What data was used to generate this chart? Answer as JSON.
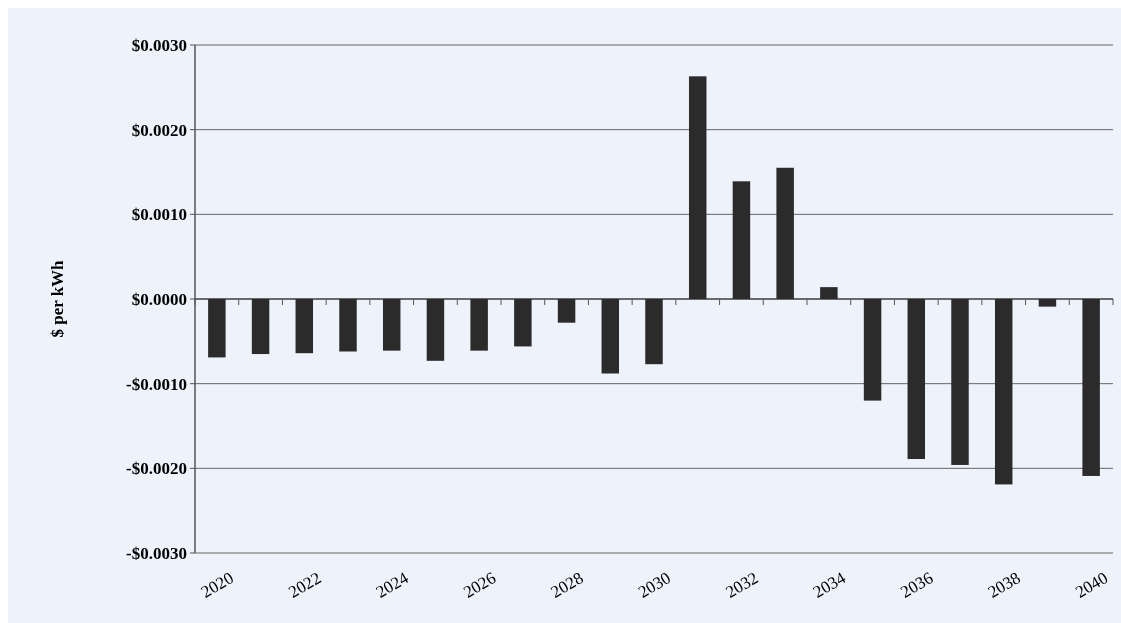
{
  "chart_data": {
    "type": "bar",
    "ylabel": "$ per kWh",
    "categories": [
      "2020",
      null,
      "2022",
      null,
      "2024",
      null,
      "2026",
      null,
      "2028",
      null,
      "2030",
      null,
      "2032",
      null,
      "2034",
      null,
      "2036",
      null,
      "2038",
      null,
      "2040"
    ],
    "values": [
      -0.00069,
      -0.00065,
      -0.00064,
      -0.00062,
      -0.00061,
      -0.00073,
      -0.00061,
      -0.00056,
      -0.00028,
      -0.00088,
      -0.00077,
      0.00263,
      0.00139,
      0.00155,
      0.00014,
      -0.0012,
      -0.00189,
      -0.00196,
      -0.00219,
      -9e-05,
      -0.00209
    ],
    "color": "#2b2b2b",
    "ylim": [
      -0.003,
      0.003
    ],
    "yticks": [
      {
        "value": -0.003,
        "label": "-$0.0030"
      },
      {
        "value": -0.002,
        "label": "-$0.0020"
      },
      {
        "value": -0.001,
        "label": "-$0.0010"
      },
      {
        "value": 0,
        "label": "$0.0000"
      },
      {
        "value": 0.001,
        "label": "$0.0010"
      },
      {
        "value": 0.002,
        "label": "$0.0020"
      },
      {
        "value": 0.003,
        "label": "$0.0030"
      }
    ],
    "grid": "y"
  }
}
